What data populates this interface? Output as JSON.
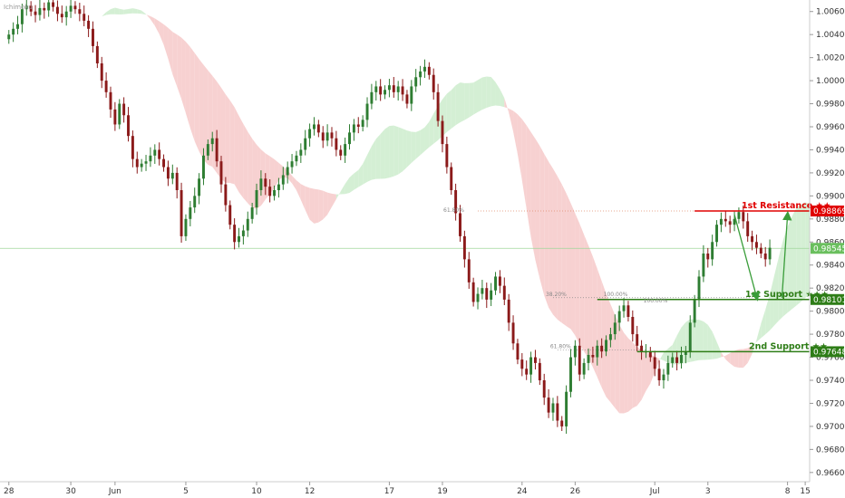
{
  "chart_data": {
    "type": "candlestick",
    "indicator_label": "Ichimoku",
    "y_ticks": [
      "1.00600",
      "1.00400",
      "1.00200",
      "1.00000",
      "0.99800",
      "0.99600",
      "0.99400",
      "0.99200",
      "0.99000",
      "0.98800",
      "0.98600",
      "0.98400",
      "0.98200",
      "0.98000",
      "0.97800",
      "0.97600",
      "0.97400",
      "0.97200",
      "0.97000",
      "0.96800",
      "0.96600"
    ],
    "ylim": [
      0.9652,
      1.007
    ],
    "x_ticks": [
      "28",
      "30",
      "Jun",
      "5",
      "10",
      "12",
      "17",
      "19",
      "24",
      "26",
      "Jul",
      "3",
      "8",
      "15"
    ],
    "x_tick_positions": [
      0,
      14,
      24,
      40,
      56,
      68,
      86,
      98,
      116,
      128,
      146,
      158,
      176,
      180
    ],
    "xlim": [
      -2,
      181
    ],
    "close_series": [
      1.004,
      1.0045,
      1.0049,
      1.0062,
      1.0065,
      1.006,
      1.0057,
      1.0063,
      1.0061,
      1.0068,
      1.0064,
      1.0058,
      1.0055,
      1.006,
      1.0065,
      1.0062,
      1.0058,
      1.0052,
      1.0045,
      1.003,
      1.0015,
      1.0,
      0.999,
      0.9975,
      0.9962,
      0.998,
      0.997,
      0.9952,
      0.9932,
      0.9925,
      0.9928,
      0.993,
      0.9935,
      0.994,
      0.9932,
      0.9925,
      0.9915,
      0.992,
      0.9905,
      0.9865,
      0.988,
      0.989,
      0.99,
      0.9915,
      0.9935,
      0.9945,
      0.995,
      0.993,
      0.991,
      0.9892,
      0.9875,
      0.986,
      0.9865,
      0.987,
      0.988,
      0.989,
      0.9905,
      0.9915,
      0.9908,
      0.99,
      0.9905,
      0.991,
      0.9918,
      0.9925,
      0.993,
      0.9935,
      0.994,
      0.995,
      0.9958,
      0.9962,
      0.9955,
      0.9948,
      0.9955,
      0.995,
      0.994,
      0.9935,
      0.9945,
      0.9955,
      0.9962,
      0.996,
      0.9966,
      0.998,
      0.999,
      0.9995,
      0.9988,
      0.9992,
      0.9996,
      0.999,
      0.9995,
      0.9988,
      0.998,
      0.9995,
      1.0003,
      1.0008,
      1.0012,
      1.0005,
      0.999,
      0.9965,
      0.9945,
      0.9925,
      0.9905,
      0.9885,
      0.9865,
      0.9845,
      0.9825,
      0.9808,
      0.9815,
      0.982,
      0.981,
      0.9818,
      0.983,
      0.9822,
      0.981,
      0.979,
      0.9772,
      0.9758,
      0.975,
      0.9745,
      0.976,
      0.9755,
      0.974,
      0.9725,
      0.9712,
      0.972,
      0.9705,
      0.97,
      0.973,
      0.976,
      0.977,
      0.9745,
      0.9755,
      0.9762,
      0.976,
      0.977,
      0.9765,
      0.9775,
      0.978,
      0.979,
      0.98,
      0.9805,
      0.9795,
      0.978,
      0.977,
      0.9765,
      0.9765,
      0.976,
      0.975,
      0.974,
      0.9745,
      0.9755,
      0.976,
      0.9755,
      0.9762,
      0.9765,
      0.979,
      0.981,
      0.983,
      0.985,
      0.9845,
      0.986,
      0.9875,
      0.988,
      0.9878,
      0.9875,
      0.988,
      0.9886,
      0.9878,
      0.9865,
      0.986,
      0.9855,
      0.985,
      0.9845,
      0.9855
    ],
    "current_price": 0.98545,
    "resistance_1": {
      "label": "1st Resistance ★★",
      "price": 0.98869,
      "tag": "0.98869",
      "color": "#e00000"
    },
    "support_1": {
      "label": "1st Support ★★★",
      "price": 0.98101,
      "tag": "0.98101",
      "color": "#2e7d17"
    },
    "support_2": {
      "label": "2nd Support ★★",
      "price": 0.97648,
      "tag": "0.97648",
      "color": "#2e7d17"
    },
    "current_tag": {
      "label": "0.98545",
      "color": "#6abf5e"
    },
    "fib_labels": {
      "r61": "61.80%",
      "r38": "38.20%",
      "r100a": "100.00%",
      "r100b": "100.00%",
      "r61b": "61.80%"
    },
    "colors": {
      "up": "#2e7d32",
      "down": "#8b1a1a",
      "cloud_bear": "#f6c9c9",
      "cloud_bull": "#cdeccd",
      "arrow": "#3a9d3a",
      "grid": "#dddddd"
    }
  }
}
